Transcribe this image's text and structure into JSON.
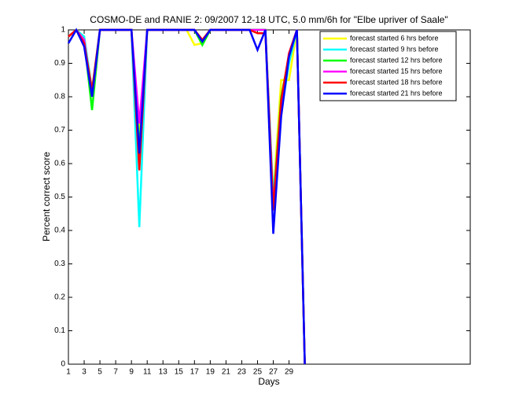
{
  "chart_data": {
    "type": "line",
    "title": "COSMO-DE and RANIE 2: 09/2007 12-18 UTC, 5.0 mm/6h for \"Elbe upriver of Saale\"",
    "x_label": "Days",
    "y_label": "Percent correct score",
    "x": [
      1,
      2,
      3,
      4,
      5,
      6,
      7,
      8,
      9,
      10,
      11,
      12,
      13,
      14,
      15,
      16,
      17,
      18,
      19,
      20,
      21,
      22,
      23,
      24,
      25,
      26,
      27,
      28,
      29,
      30,
      31
    ],
    "series": [
      {
        "name": "forecast started 6 hrs before",
        "color": "#ffff00",
        "values": [
          0.98,
          1,
          0.98,
          0.82,
          1,
          1,
          1,
          1,
          1,
          0.7,
          1,
          1,
          1,
          1,
          1,
          1,
          0.955,
          0.96,
          1,
          1,
          1,
          1,
          1,
          1,
          1,
          1,
          0.5,
          0.85,
          0.85,
          1,
          0
        ]
      },
      {
        "name": "forecast started 9 hrs before",
        "color": "#00ffff",
        "values": [
          0.98,
          1,
          0.98,
          0.82,
          1,
          1,
          1,
          1,
          1,
          0.41,
          1,
          1,
          1,
          1,
          1,
          1,
          1,
          0.97,
          1,
          1,
          1,
          1,
          1,
          1,
          1,
          1,
          0.5,
          0.75,
          0.9,
          1,
          0
        ]
      },
      {
        "name": "forecast started 12 hrs before",
        "color": "#00ff00",
        "values": [
          0.98,
          1,
          0.97,
          0.76,
          1,
          1,
          1,
          1,
          1,
          0.65,
          1,
          1,
          1,
          1,
          1,
          1,
          1,
          0.955,
          1,
          1,
          1,
          1,
          1,
          1,
          1,
          1,
          0.48,
          0.8,
          0.92,
          1,
          0
        ]
      },
      {
        "name": "forecast started 15 hrs before",
        "color": "#ff00ff",
        "values": [
          0.98,
          1,
          0.97,
          0.8,
          1,
          1,
          1,
          1,
          1,
          0.72,
          1,
          1,
          1,
          1,
          1,
          1,
          1,
          0.97,
          1,
          1,
          1,
          1,
          1,
          1,
          1,
          1,
          0.47,
          0.78,
          0.93,
          1,
          0
        ]
      },
      {
        "name": "forecast started 18 hrs before",
        "color": "#ff0000",
        "values": [
          0.98,
          1,
          0.96,
          0.82,
          1,
          1,
          1,
          1,
          1,
          0.58,
          1,
          1,
          1,
          1,
          1,
          1,
          1,
          0.97,
          1,
          1,
          1,
          1,
          1,
          1,
          0.99,
          0.99,
          0.46,
          0.79,
          0.93,
          1,
          0
        ]
      },
      {
        "name": "forecast started 21 hrs before",
        "color": "#0000ff",
        "values": [
          0.96,
          1,
          0.95,
          0.8,
          1,
          1,
          1,
          1,
          1,
          0.63,
          1,
          1,
          1,
          1,
          1,
          1,
          1,
          0.965,
          1,
          1,
          1,
          1,
          1,
          1,
          0.94,
          1,
          0.39,
          0.74,
          0.92,
          1,
          0
        ]
      }
    ],
    "xlim": [
      1,
      52
    ],
    "xticks": [
      1,
      3,
      5,
      7,
      9,
      11,
      13,
      15,
      17,
      19,
      21,
      23,
      25,
      27,
      29
    ],
    "ylim": [
      0,
      1
    ],
    "yticks": [
      0,
      0.1,
      0.2,
      0.3,
      0.4,
      0.5,
      0.6,
      0.7,
      0.8,
      0.9,
      1
    ],
    "legend": "upper right",
    "grid": false
  }
}
